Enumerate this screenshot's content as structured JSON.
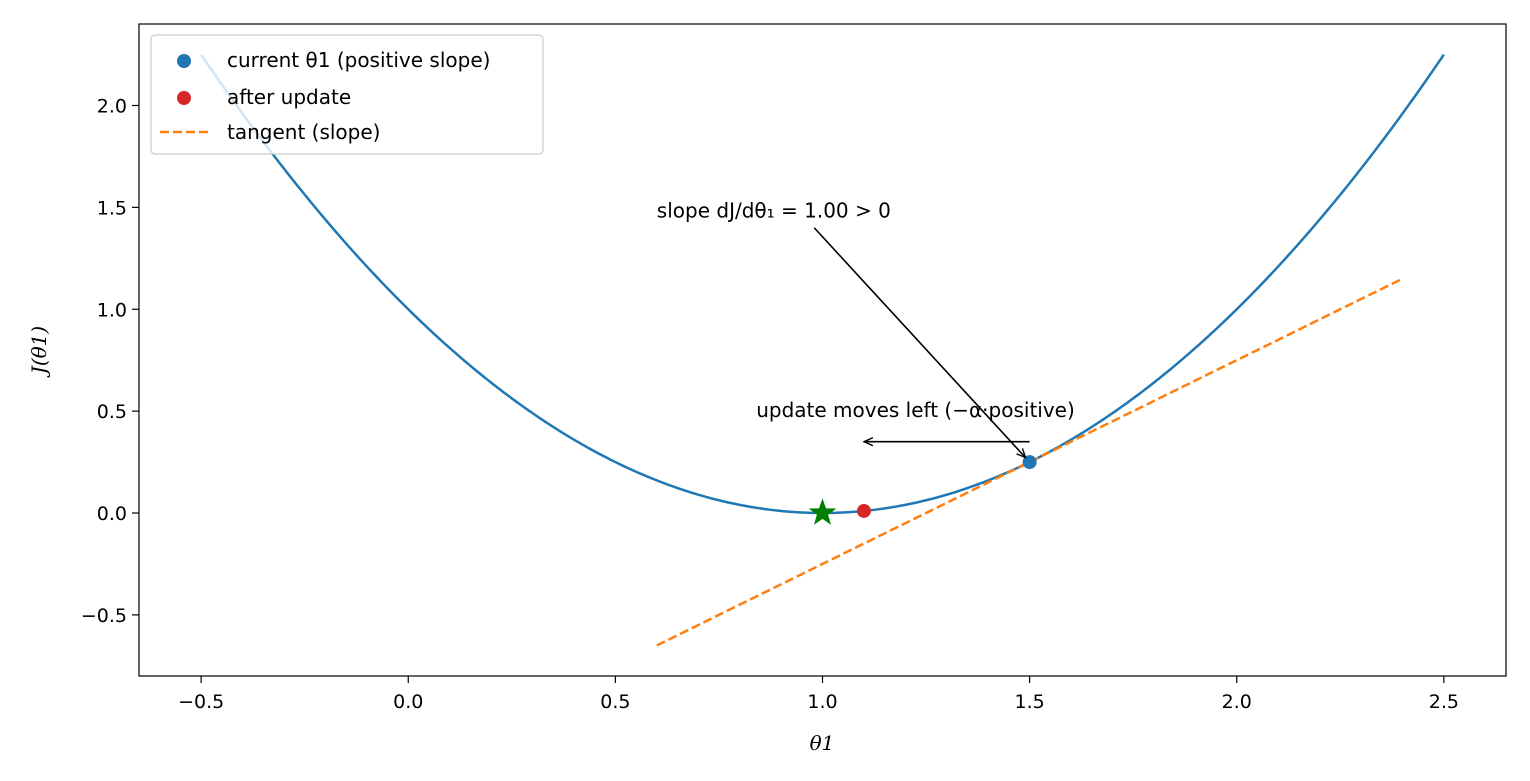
{
  "chart_data": {
    "type": "line",
    "xlabel": "θ1",
    "ylabel": "J(θ1)",
    "xlim": [
      -0.65,
      2.65
    ],
    "ylim": [
      -0.8,
      2.4
    ],
    "xticks": [
      -0.5,
      0.0,
      0.5,
      1.0,
      1.5,
      2.0,
      2.5
    ],
    "xtick_labels": [
      "−0.5",
      "0.0",
      "0.5",
      "1.0",
      "1.5",
      "2.0",
      "2.5"
    ],
    "yticks": [
      -0.5,
      0.0,
      0.5,
      1.0,
      1.5,
      2.0
    ],
    "ytick_labels": [
      "−0.5",
      "0.0",
      "0.5",
      "1.0",
      "1.5",
      "2.0"
    ],
    "grid": false,
    "legend_position": "top-left",
    "curve": {
      "function": "(θ1 - 1)^2",
      "x": [
        -0.5,
        -0.25,
        0.0,
        0.25,
        0.5,
        0.75,
        1.0,
        1.25,
        1.5,
        1.75,
        2.0,
        2.25,
        2.5
      ],
      "y": [
        2.25,
        1.5625,
        1.0,
        0.5625,
        0.25,
        0.0625,
        0.0,
        0.0625,
        0.25,
        0.5625,
        1.0,
        1.5625,
        2.25
      ],
      "color": "#1f77b4"
    },
    "series": [
      {
        "name": "current θ1 (positive slope)",
        "kind": "point",
        "x": 1.5,
        "y": 0.25,
        "color": "#1f77b4"
      },
      {
        "name": "after update",
        "kind": "point",
        "x": 1.1,
        "y": 0.01,
        "color": "#d62728"
      },
      {
        "name": "tangent (slope)",
        "kind": "dashed-line",
        "x": [
          0.6,
          2.4
        ],
        "y": [
          -0.65,
          1.15
        ],
        "color": "#ff7f0e"
      }
    ],
    "minimum_marker": {
      "x": 1.0,
      "y": 0.0,
      "color": "#008000",
      "shape": "star"
    },
    "annotations": [
      {
        "text": "slope dJ/dθ₁ = 1.00 > 0",
        "text_x": 0.6,
        "text_y": 1.45,
        "arrow_from": [
          0.98,
          1.4
        ],
        "arrow_to": [
          1.5,
          0.25
        ]
      },
      {
        "text": "update moves left (−α·positive)",
        "text_x": 0.84,
        "text_y": 0.47,
        "arrow_from": [
          1.5,
          0.35
        ],
        "arrow_to": [
          1.1,
          0.35
        ]
      }
    ]
  }
}
